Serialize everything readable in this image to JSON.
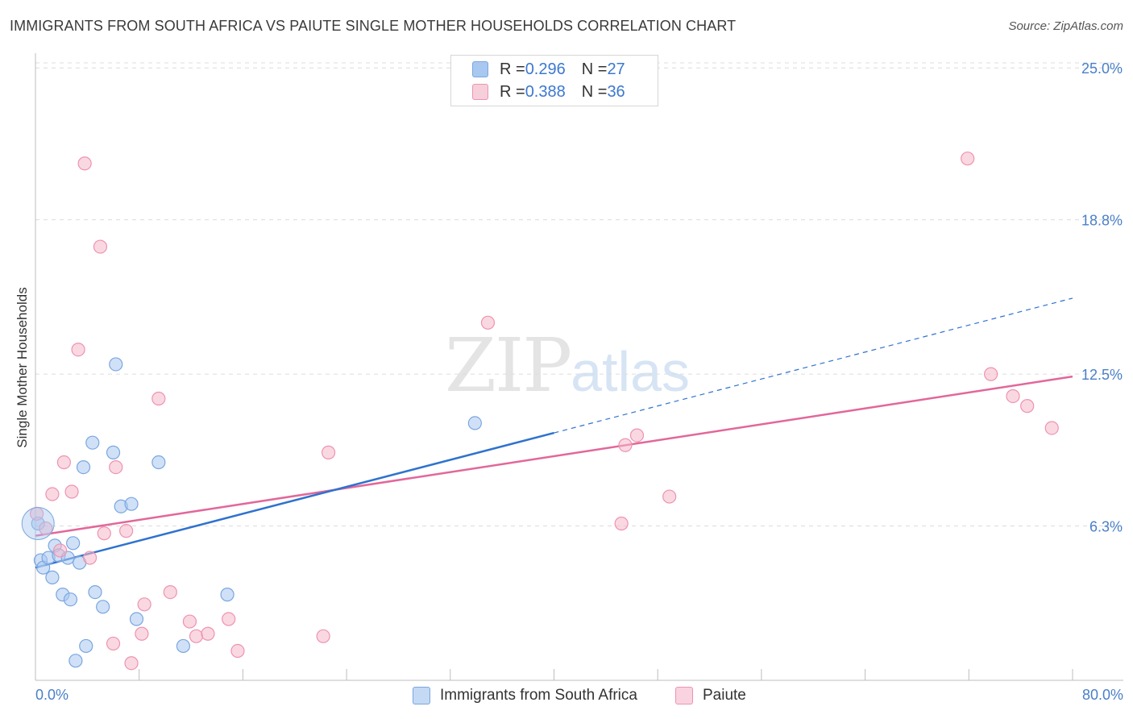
{
  "title": "IMMIGRANTS FROM SOUTH AFRICA VS PAIUTE SINGLE MOTHER HOUSEHOLDS CORRELATION CHART",
  "source": "Source: ZipAtlas.com",
  "watermark": {
    "zip": "ZIP",
    "atlas": "atlas"
  },
  "colors": {
    "blue_fill": "#a9c8f0",
    "blue_stroke": "#7aa6e0",
    "blue_line": "#2f72cf",
    "pink_fill": "#f6b8cb",
    "pink_stroke": "#ee93b0",
    "pink_line": "#e2679a",
    "axis_text": "#4a7fc8",
    "grid": "#dcdcdc"
  },
  "legend_top": [
    {
      "r_label": "R = ",
      "r_value": "0.296",
      "n_label": "N = ",
      "n_value": "27",
      "color": "#a9c8f0"
    },
    {
      "r_label": "R = ",
      "r_value": "0.388",
      "n_label": "N = ",
      "n_value": "36",
      "color": "#f6b8cb"
    }
  ],
  "chart_data": {
    "type": "scatter",
    "title": "IMMIGRANTS FROM SOUTH AFRICA VS PAIUTE SINGLE MOTHER HOUSEHOLDS CORRELATION CHART",
    "xlabel": "",
    "ylabel": "Single Mother Households",
    "xlim": [
      0,
      80
    ],
    "ylim": [
      0,
      25.6
    ],
    "x_tick_labels": [
      "0.0%",
      "80.0%"
    ],
    "y_ticks": [
      6.3,
      12.5,
      18.8,
      25.0
    ],
    "y_tick_labels": [
      "6.3%",
      "12.5%",
      "18.8%",
      "25.0%"
    ],
    "grid": "horizontal dashed",
    "legend_placement": "top-center and bottom",
    "series": [
      {
        "name": "Immigrants from South Africa",
        "color": "#a9c8f0",
        "points": [
          [
            0.2,
            6.4
          ],
          [
            0.4,
            4.9
          ],
          [
            0.6,
            4.6
          ],
          [
            1.0,
            5.0
          ],
          [
            1.3,
            4.2
          ],
          [
            1.5,
            5.5
          ],
          [
            1.8,
            5.1
          ],
          [
            2.1,
            3.5
          ],
          [
            2.5,
            5.0
          ],
          [
            2.7,
            3.3
          ],
          [
            2.9,
            5.6
          ],
          [
            3.1,
            0.8
          ],
          [
            3.4,
            4.8
          ],
          [
            3.7,
            8.7
          ],
          [
            3.9,
            1.4
          ],
          [
            4.4,
            9.7
          ],
          [
            4.6,
            3.6
          ],
          [
            5.2,
            3.0
          ],
          [
            6.0,
            9.3
          ],
          [
            6.2,
            12.9
          ],
          [
            6.6,
            7.1
          ],
          [
            7.4,
            7.2
          ],
          [
            7.8,
            2.5
          ],
          [
            9.5,
            8.9
          ],
          [
            11.4,
            1.4
          ],
          [
            14.8,
            3.5
          ],
          [
            33.9,
            10.5
          ]
        ],
        "trend": {
          "x": [
            0,
            40
          ],
          "y": [
            4.6,
            10.1
          ]
        },
        "trend_extension": {
          "x": [
            40,
            80
          ],
          "y": [
            10.1,
            15.6
          ]
        }
      },
      {
        "name": "Paiute",
        "color": "#f6b8cb",
        "points": [
          [
            0.1,
            6.8
          ],
          [
            0.8,
            6.2
          ],
          [
            1.3,
            7.6
          ],
          [
            1.9,
            5.3
          ],
          [
            2.2,
            8.9
          ],
          [
            2.8,
            7.7
          ],
          [
            3.3,
            13.5
          ],
          [
            3.8,
            21.1
          ],
          [
            4.2,
            5.0
          ],
          [
            5.0,
            17.7
          ],
          [
            5.3,
            6.0
          ],
          [
            6.0,
            1.5
          ],
          [
            6.2,
            8.7
          ],
          [
            7.0,
            6.1
          ],
          [
            7.4,
            0.7
          ],
          [
            8.2,
            1.9
          ],
          [
            8.4,
            3.1
          ],
          [
            9.5,
            11.5
          ],
          [
            10.4,
            3.6
          ],
          [
            11.9,
            2.4
          ],
          [
            12.4,
            1.8
          ],
          [
            13.3,
            1.9
          ],
          [
            14.9,
            2.5
          ],
          [
            15.6,
            1.2
          ],
          [
            22.2,
            1.8
          ],
          [
            22.6,
            9.3
          ],
          [
            34.9,
            14.6
          ],
          [
            45.2,
            6.4
          ],
          [
            45.5,
            9.6
          ],
          [
            46.4,
            10.0
          ],
          [
            48.9,
            7.5
          ],
          [
            71.9,
            21.3
          ],
          [
            73.7,
            12.5
          ],
          [
            75.4,
            11.6
          ],
          [
            76.5,
            11.2
          ],
          [
            78.4,
            10.3
          ]
        ],
        "trend": {
          "x": [
            0,
            80
          ],
          "y": [
            5.9,
            12.4
          ]
        }
      }
    ]
  },
  "legend_bottom": [
    {
      "label": "Immigrants from South Africa",
      "color": "#a9c8f0"
    },
    {
      "label": "Paiute",
      "color": "#f6b8cb"
    }
  ]
}
